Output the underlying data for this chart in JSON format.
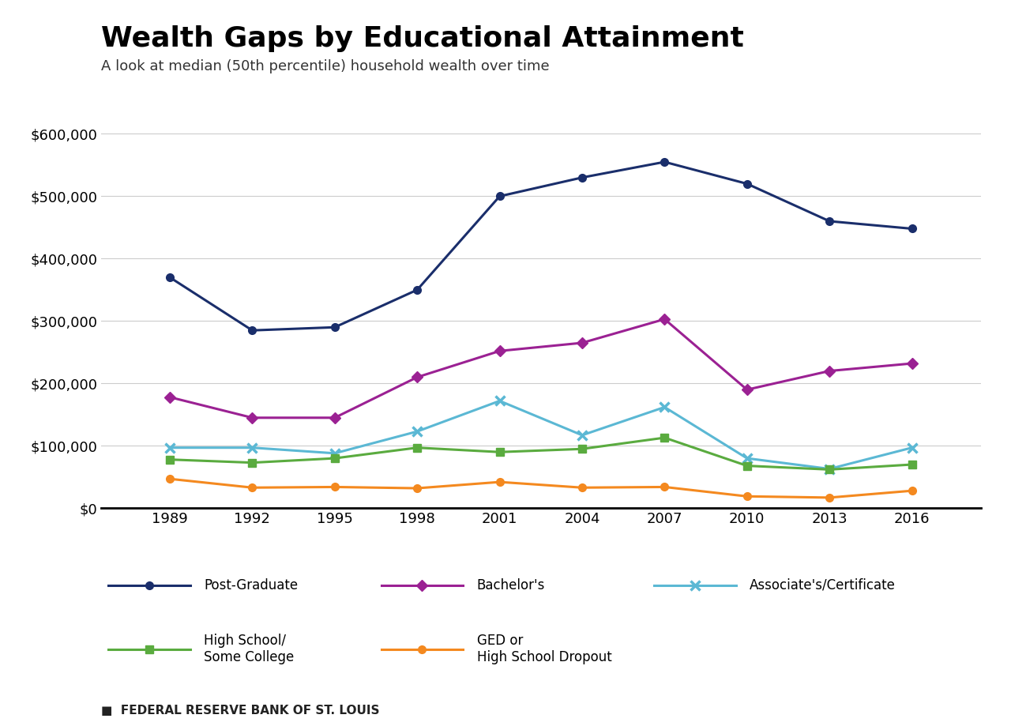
{
  "title": "Wealth Gaps by Educational Attainment",
  "subtitle": "A look at median (50th percentile) household wealth over time",
  "footer": "FEDERAL RESERVE BANK OF ST. LOUIS",
  "years": [
    1989,
    1992,
    1995,
    1998,
    2001,
    2004,
    2007,
    2010,
    2013,
    2016
  ],
  "series": [
    {
      "label": "Post-Graduate",
      "values": [
        370000,
        285000,
        290000,
        350000,
        500000,
        530000,
        555000,
        520000,
        460000,
        448000
      ],
      "color": "#1a2e6b",
      "marker": "o",
      "linewidth": 2.2,
      "markersize": 7,
      "is_x": false
    },
    {
      "label": "Bachelor's",
      "values": [
        178000,
        145000,
        145000,
        210000,
        252000,
        265000,
        303000,
        190000,
        220000,
        232000
      ],
      "color": "#9b2193",
      "marker": "D",
      "linewidth": 2.2,
      "markersize": 7,
      "is_x": false
    },
    {
      "label": "Associate's/Certificate",
      "values": [
        97000,
        97000,
        88000,
        123000,
        172000,
        117000,
        162000,
        80000,
        63000,
        97000
      ],
      "color": "#5bb8d4",
      "marker": "x",
      "linewidth": 2.2,
      "markersize": 9,
      "markeredgewidth": 2.5,
      "is_x": true
    },
    {
      "label": "High School/\nSome College",
      "values": [
        78000,
        73000,
        80000,
        97000,
        90000,
        95000,
        113000,
        68000,
        62000,
        70000
      ],
      "color": "#5aab3f",
      "marker": "s",
      "linewidth": 2.2,
      "markersize": 7,
      "is_x": false
    },
    {
      "label": "GED or\nHigh School Dropout",
      "values": [
        47000,
        33000,
        34000,
        32000,
        42000,
        33000,
        34000,
        19000,
        17000,
        28000
      ],
      "color": "#f4891f",
      "marker": "o",
      "linewidth": 2.2,
      "markersize": 7,
      "is_x": false
    }
  ],
  "ylim": [
    0,
    640000
  ],
  "yticks": [
    0,
    100000,
    200000,
    300000,
    400000,
    500000,
    600000
  ],
  "background_color": "#ffffff",
  "grid_color": "#cccccc",
  "title_fontsize": 26,
  "subtitle_fontsize": 13,
  "tick_fontsize": 13,
  "legend_fontsize": 12,
  "footer_fontsize": 11
}
